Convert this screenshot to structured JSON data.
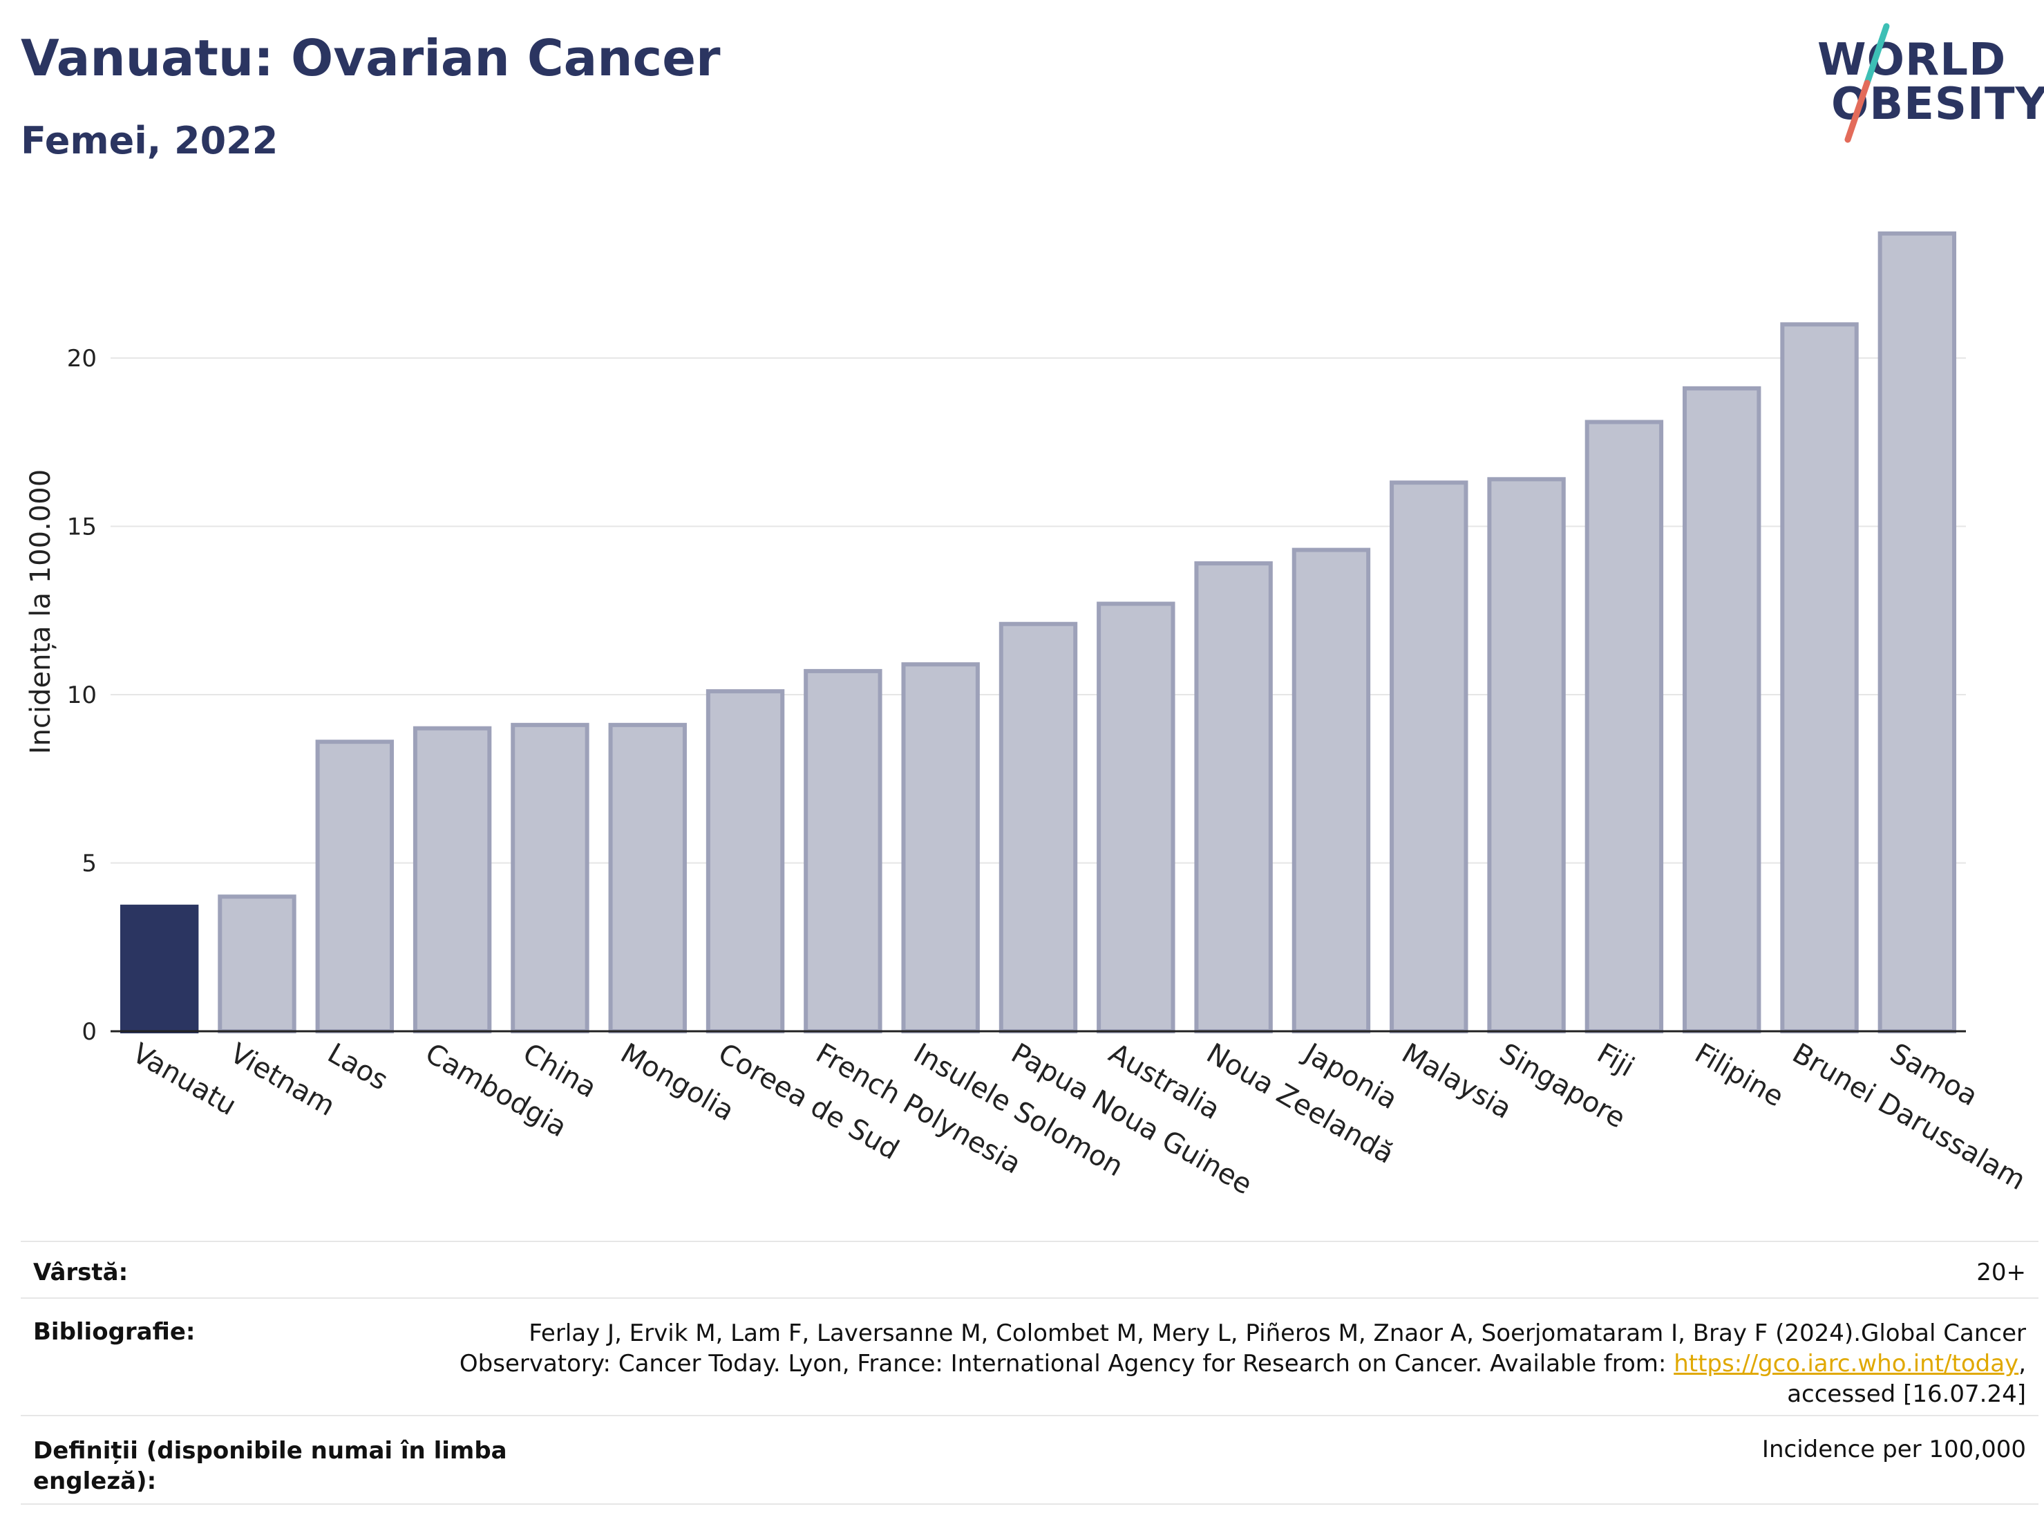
{
  "header": {
    "title": "Vanuatu: Ovarian Cancer",
    "subtitle": "Femei, 2022"
  },
  "logo": {
    "line1": "WORLD",
    "line2": "OBESITY",
    "accent_colors": [
      "#3dbfb5",
      "#e36b5a"
    ]
  },
  "chart_data": {
    "type": "bar",
    "title": "Vanuatu: Ovarian Cancer",
    "subtitle": "Femei, 2022",
    "xlabel": "",
    "ylabel": "Incidența la 100.000",
    "ylim": [
      0,
      24.5
    ],
    "yticks": [
      0,
      5,
      10,
      15,
      20
    ],
    "grid": true,
    "categories": [
      "Vanuatu",
      "Vietnam",
      "Laos",
      "Cambodgia",
      "China",
      "Mongolia",
      "Coreea de Sud",
      "French Polynesia",
      "Insulele Solomon",
      "Papua Noua Guinee",
      "Australia",
      "Noua Zeelandă",
      "Japonia",
      "Malaysia",
      "Singapore",
      "Fiji",
      "Filipine",
      "Brunei Darussalam",
      "Samoa"
    ],
    "values": [
      3.7,
      4.0,
      8.6,
      9.0,
      9.1,
      9.1,
      10.1,
      10.7,
      10.9,
      12.1,
      12.7,
      13.9,
      14.3,
      16.3,
      16.4,
      18.1,
      19.1,
      21.0,
      23.7
    ],
    "highlight_index": 0,
    "colors": {
      "highlight": "#2b3561",
      "bar": "#bfc2d0",
      "bar_border": "#9da1b9",
      "grid": "#e6e6e6",
      "axis": "#222222"
    }
  },
  "info": {
    "age_label": "Vârstă:",
    "age_value": "20+",
    "bib_label": "Bibliografie:",
    "bib_line1": "Ferlay J, Ervik M, Lam F, Laversanne M, Colombet M, Mery L, Piñeros M, Znaor A, Soerjomataram I, Bray F (2024).Global Cancer",
    "bib_line2_prefix": "Observatory: Cancer Today. Lyon, France: International Agency for Research on Cancer. Available from: ",
    "bib_link": "https://gco.iarc.who.int/today",
    "bib_line2_suffix": ",",
    "bib_line3": "accessed [16.07.24]",
    "def_label_line1": "Definiții (disponibile numai în limba",
    "def_label_line2": "engleză):",
    "def_value": "Incidence per 100,000"
  }
}
